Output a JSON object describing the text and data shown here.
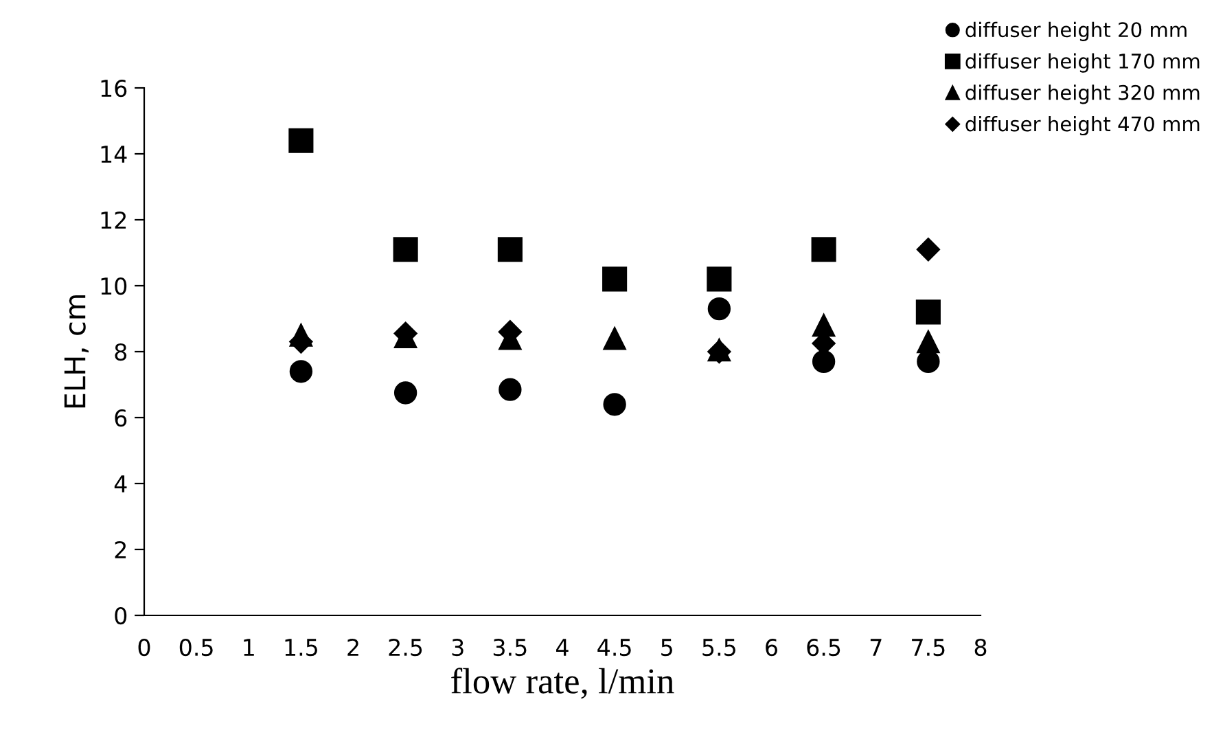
{
  "chart_data": {
    "type": "scatter",
    "xlabel": "flow rate, l/min",
    "ylabel": "ELH, cm",
    "xlim": [
      0,
      8
    ],
    "xticks": [
      0,
      0.5,
      1,
      1.5,
      2,
      2.5,
      3,
      3.5,
      4,
      4.5,
      5,
      5.5,
      6,
      6.5,
      7,
      7.5,
      8
    ],
    "ylim": [
      0,
      16
    ],
    "yticks": [
      0,
      2,
      4,
      6,
      8,
      10,
      12,
      14,
      16
    ],
    "grid": false,
    "legend": "top right",
    "x": [
      1.5,
      2.5,
      3.5,
      4.5,
      5.5,
      6.5,
      7.5
    ],
    "series": [
      {
        "name": "diffuser height 20 mm",
        "color": "#000000",
        "marker": "circle",
        "values": [
          7.4,
          6.75,
          6.85,
          6.4,
          9.3,
          7.7,
          7.7
        ]
      },
      {
        "name": "diffuser height 170 mm",
        "color": "#000000",
        "marker": "square",
        "values": [
          14.4,
          11.1,
          11.1,
          10.2,
          10.2,
          11.1,
          9.2
        ]
      },
      {
        "name": "diffuser height 320 mm",
        "color": "#000000",
        "marker": "triangle",
        "values": [
          8.5,
          8.45,
          8.4,
          8.4,
          8.05,
          8.8,
          8.3
        ]
      },
      {
        "name": "diffuser height 470 mm",
        "color": "#000000",
        "marker": "diamond",
        "values": [
          8.3,
          8.55,
          8.6,
          null,
          8.0,
          8.25,
          11.1
        ]
      }
    ]
  }
}
